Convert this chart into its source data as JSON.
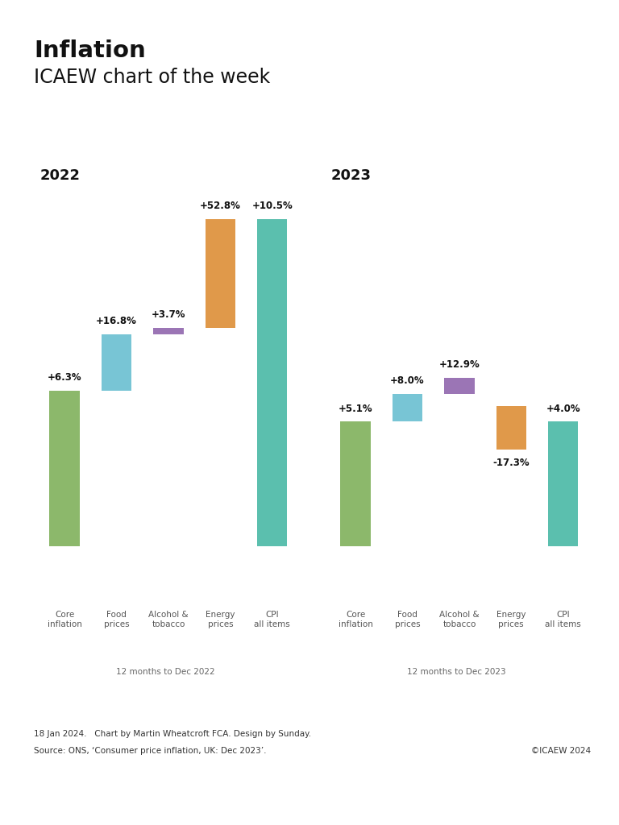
{
  "title": "Inflation",
  "subtitle": "ICAEW chart of the week",
  "background_color": "#ffffff",
  "panel_bg": "#ececec",
  "footer_line1": "18 Jan 2024.   Chart by Martin Wheatcroft FCA. Design by Sunday.",
  "footer_line2": "Source: ONS, ‘Consumer price inflation, UK: Dec 2023’.",
  "footer_right": "©ICAEW 2024",
  "charts": [
    {
      "year_label": "2022",
      "subtitle": "12 months to Dec 2022",
      "categories": [
        "Core\ninflation",
        "Food\nprices",
        "Alcohol &\ntobacco",
        "Energy\nprices",
        "CPI\nall items"
      ],
      "labels": [
        "+6.3%",
        "+16.8%",
        "+3.7%",
        "+52.8%",
        "+10.5%"
      ],
      "bar_bottoms": [
        0.0,
        5.0,
        6.8,
        7.0,
        0.0
      ],
      "bar_heights": [
        5.0,
        1.8,
        0.2,
        3.5,
        10.5
      ],
      "colors": [
        "#8cb86b",
        "#78c5d5",
        "#9b75b5",
        "#e0994a",
        "#5bbfae"
      ],
      "label_above": [
        true,
        true,
        true,
        true,
        true
      ]
    },
    {
      "year_label": "2023",
      "subtitle": "12 months to Dec 2023",
      "categories": [
        "Core\ninflation",
        "Food\nprices",
        "Alcohol &\ntobacco",
        "Energy\nprices",
        "CPI\nall items"
      ],
      "labels": [
        "+5.1%",
        "+8.0%",
        "+12.9%",
        "-17.3%",
        "+4.0%"
      ],
      "bar_bottoms": [
        0.0,
        4.0,
        4.9,
        3.1,
        0.0
      ],
      "bar_heights": [
        4.0,
        0.9,
        0.5,
        1.4,
        4.0
      ],
      "colors": [
        "#8cb86b",
        "#78c5d5",
        "#9b75b5",
        "#e0994a",
        "#5bbfae"
      ],
      "label_above": [
        true,
        true,
        true,
        false,
        true
      ]
    }
  ],
  "ylim": [
    -1.5,
    12.5
  ],
  "title_fontsize": 21,
  "subtitle_fontsize": 17,
  "year_fontsize": 13,
  "label_fontsize": 8.5,
  "cat_fontsize": 7.5,
  "footer_fontsize": 7.5
}
